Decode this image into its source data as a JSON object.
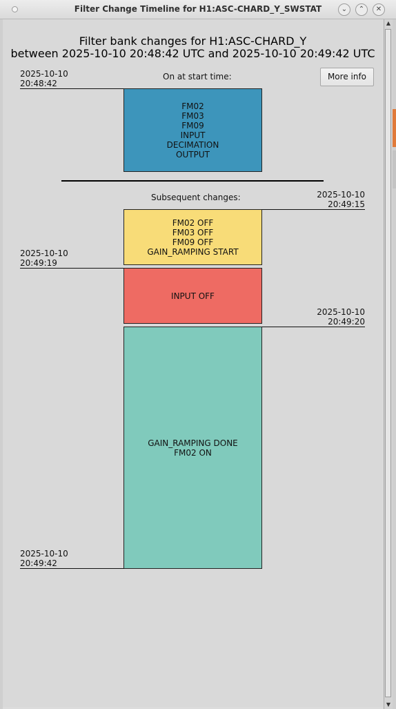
{
  "window": {
    "title": "Filter Change Timeline for H1:ASC-CHARD_Y_SWSTAT",
    "min_glyph": "⌄",
    "max_glyph": "⌃",
    "close_glyph": "✕"
  },
  "heading": {
    "line1": "Filter bank changes for H1:ASC-CHARD_Y",
    "line2": "between 2025-10-10 20:48:42 UTC and 2025-10-10 20:49:42 UTC"
  },
  "more_info_label": "More info",
  "start": {
    "label": "On at start time:",
    "timestamp_date": "2025-10-10",
    "timestamp_time": "20:48:42",
    "filters": [
      "FM02",
      "FM03",
      "FM09",
      "INPUT",
      "DECIMATION",
      "OUTPUT"
    ],
    "color": "#3d95bb"
  },
  "subsequent_label": "Subsequent changes:",
  "changes": [
    {
      "date": "2025-10-10",
      "time": "20:49:15",
      "side": "right",
      "lines": [
        "FM02 OFF",
        "FM03 OFF",
        "FM09 OFF",
        "GAIN_RAMPING START"
      ],
      "color": "#f8dc78"
    },
    {
      "date": "2025-10-10",
      "time": "20:49:19",
      "side": "left",
      "lines": [
        "INPUT OFF"
      ],
      "color": "#ee6b63"
    },
    {
      "date": "2025-10-10",
      "time": "20:49:20",
      "side": "right",
      "lines": [
        "GAIN_RAMPING DONE",
        "FM02 ON"
      ],
      "color": "#80cabc"
    }
  ],
  "end": {
    "date": "2025-10-10",
    "time": "20:49:42"
  },
  "scrollbar": {
    "up_glyph": "▲",
    "down_glyph": "▼"
  }
}
